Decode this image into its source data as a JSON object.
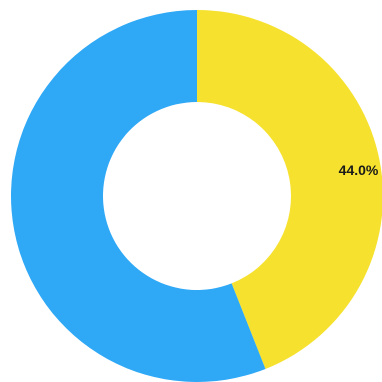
{
  "chart_data": {
    "type": "pie",
    "variant": "donut",
    "title": "",
    "slices": [
      {
        "value": 44.0,
        "color": "#f5e12e",
        "label": "44.0%"
      },
      {
        "value": 56.0,
        "color": "#2fa8f6",
        "label": ""
      }
    ],
    "start": "12 o'clock",
    "direction": "clockwise",
    "legend": "none"
  }
}
